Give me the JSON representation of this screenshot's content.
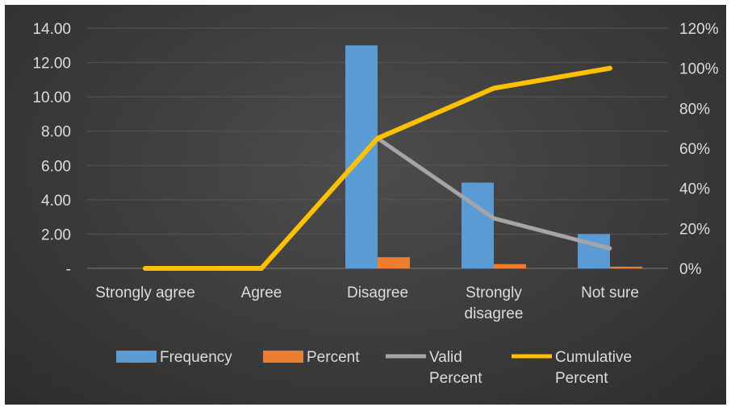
{
  "chart_data": {
    "type": "bar",
    "title": "",
    "categories": [
      [
        "Strongly agree"
      ],
      [
        "Agree"
      ],
      [
        "Disagree"
      ],
      [
        "Strongly",
        "disagree"
      ],
      [
        "Not sure"
      ]
    ],
    "y_left": {
      "min": 0,
      "max": 14,
      "step": 2,
      "tick_labels": [
        "-",
        "2.00",
        "4.00",
        "6.00",
        "8.00",
        "10.00",
        "12.00",
        "14.00"
      ]
    },
    "y_right": {
      "min": 0,
      "max": 120,
      "step": 20,
      "tick_labels": [
        "0%",
        "20%",
        "40%",
        "60%",
        "80%",
        "100%",
        "120%"
      ]
    },
    "series": [
      {
        "name": [
          "Frequency"
        ],
        "kind": "bar",
        "axis": "left",
        "color": "#5b9bd5",
        "values": [
          0,
          0,
          13,
          5,
          2
        ]
      },
      {
        "name": [
          "Percent"
        ],
        "kind": "bar",
        "axis": "left",
        "color": "#ed7d31",
        "values": [
          0,
          0,
          0.65,
          0.25,
          0.1
        ]
      },
      {
        "name": [
          "Valid",
          "Percent"
        ],
        "kind": "line",
        "axis": "right",
        "color": "#a5a5a5",
        "values": [
          null,
          null,
          65,
          25,
          10
        ]
      },
      {
        "name": [
          "Cumulative",
          "Percent"
        ],
        "kind": "line",
        "axis": "right",
        "color": "#ffc000",
        "values": [
          0,
          0,
          65,
          90,
          100
        ]
      }
    ],
    "legend_position": "bottom",
    "grid": true
  }
}
